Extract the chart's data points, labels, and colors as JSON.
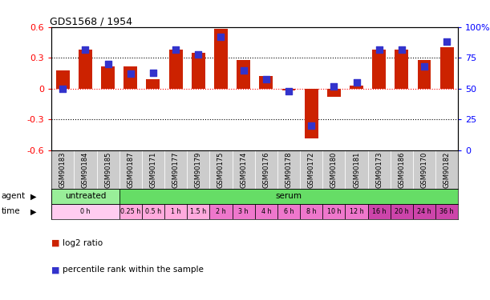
{
  "title": "GDS1568 / 1954",
  "samples": [
    "GSM90183",
    "GSM90184",
    "GSM90185",
    "GSM90187",
    "GSM90171",
    "GSM90177",
    "GSM90179",
    "GSM90175",
    "GSM90174",
    "GSM90176",
    "GSM90178",
    "GSM90172",
    "GSM90180",
    "GSM90181",
    "GSM90173",
    "GSM90186",
    "GSM90170",
    "GSM90182"
  ],
  "log2_ratio": [
    0.18,
    0.38,
    0.22,
    0.22,
    0.09,
    0.38,
    0.35,
    0.58,
    0.28,
    0.12,
    -0.02,
    -0.48,
    -0.08,
    0.03,
    0.38,
    0.38,
    0.28,
    0.4
  ],
  "percentile": [
    50,
    82,
    70,
    62,
    63,
    82,
    78,
    92,
    65,
    58,
    48,
    20,
    52,
    55,
    82,
    82,
    68,
    88
  ],
  "bar_color": "#cc2200",
  "dot_color": "#3333cc",
  "ylim_left": [
    -0.6,
    0.6
  ],
  "ylim_right": [
    0,
    100
  ],
  "yticks_left": [
    -0.6,
    -0.3,
    0.0,
    0.3,
    0.6
  ],
  "yticks_right": [
    0,
    25,
    50,
    75,
    100
  ],
  "ytick_labels_left": [
    "-0.6",
    "-0.3",
    "0",
    "0.3",
    "0.6"
  ],
  "ytick_labels_right": [
    "0",
    "25",
    "50",
    "75",
    "100%"
  ],
  "hlines_dotted": [
    -0.3,
    0.3
  ],
  "hline_red": 0.0,
  "agent_row": [
    {
      "label": "untreated",
      "start": 0,
      "end": 3,
      "color": "#99ee99"
    },
    {
      "label": "serum",
      "start": 3,
      "end": 18,
      "color": "#66dd66"
    }
  ],
  "time_row": [
    {
      "label": "0 h",
      "start": 0,
      "end": 3,
      "color": "#ffccf0"
    },
    {
      "label": "0.25 h",
      "start": 3,
      "end": 4,
      "color": "#ffaadd"
    },
    {
      "label": "0.5 h",
      "start": 4,
      "end": 5,
      "color": "#ffaadd"
    },
    {
      "label": "1 h",
      "start": 5,
      "end": 6,
      "color": "#ffaadd"
    },
    {
      "label": "1.5 h",
      "start": 6,
      "end": 7,
      "color": "#ffaadd"
    },
    {
      "label": "2 h",
      "start": 7,
      "end": 8,
      "color": "#ee77cc"
    },
    {
      "label": "3 h",
      "start": 8,
      "end": 9,
      "color": "#ee77cc"
    },
    {
      "label": "4 h",
      "start": 9,
      "end": 10,
      "color": "#ee77cc"
    },
    {
      "label": "6 h",
      "start": 10,
      "end": 11,
      "color": "#ee77cc"
    },
    {
      "label": "8 h",
      "start": 11,
      "end": 12,
      "color": "#ee77cc"
    },
    {
      "label": "10 h",
      "start": 12,
      "end": 13,
      "color": "#ee77cc"
    },
    {
      "label": "12 h",
      "start": 13,
      "end": 14,
      "color": "#ee77cc"
    },
    {
      "label": "16 h",
      "start": 14,
      "end": 15,
      "color": "#cc44aa"
    },
    {
      "label": "20 h",
      "start": 15,
      "end": 16,
      "color": "#cc44aa"
    },
    {
      "label": "24 h",
      "start": 16,
      "end": 17,
      "color": "#cc44aa"
    },
    {
      "label": "36 h",
      "start": 17,
      "end": 18,
      "color": "#cc44aa"
    }
  ],
  "legend_items": [
    {
      "color": "#cc2200",
      "label": "log2 ratio"
    },
    {
      "color": "#3333cc",
      "label": "percentile rank within the sample"
    }
  ],
  "bar_width": 0.6,
  "dot_size": 30,
  "background_color": "#ffffff"
}
